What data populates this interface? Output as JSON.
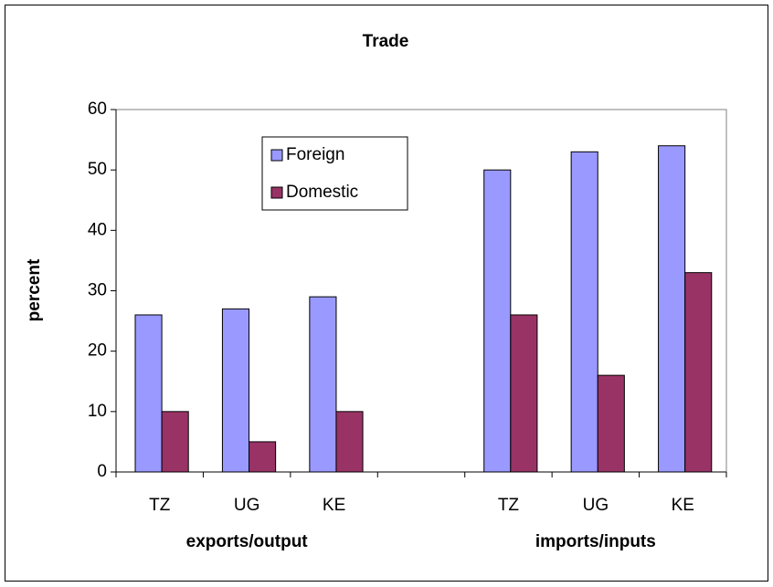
{
  "chart_data": {
    "type": "bar",
    "title": "Trade",
    "y_label": "percent",
    "categories": [
      "TZ",
      "UG",
      "KE",
      null,
      "TZ",
      "UG",
      "KE"
    ],
    "group_labels": [
      "exports/output",
      "imports/inputs"
    ],
    "series": [
      {
        "name": "Foreign",
        "color": "#9999ff",
        "values": [
          26,
          27,
          29,
          null,
          50,
          53,
          54
        ]
      },
      {
        "name": "Domestic",
        "color": "#993366",
        "values": [
          10,
          5,
          10,
          null,
          26,
          16,
          33
        ]
      }
    ],
    "ylim": [
      0,
      60
    ],
    "yticks": [
      0,
      10,
      20,
      30,
      40,
      50,
      60
    ],
    "grid": false,
    "legend": "upper left"
  }
}
